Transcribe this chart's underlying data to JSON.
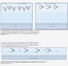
{
  "bg_color": "#f5f5f5",
  "top_panel_bg": "#e8f0f8",
  "catalyst_fill": "#c8d8e8",
  "catalyst_edge": "#8090a0",
  "water_fill": "#d0e8f8",
  "text_color": "#202020",
  "label_color": "#202020",
  "arrow_color": "#303030",
  "divider_color": "#aaaaaa",
  "font_size": 1.8,
  "small_font": 1.5,
  "label_font": 2.2,
  "fig_width": 1.0,
  "fig_height": 0.97,
  "dpi": 100
}
